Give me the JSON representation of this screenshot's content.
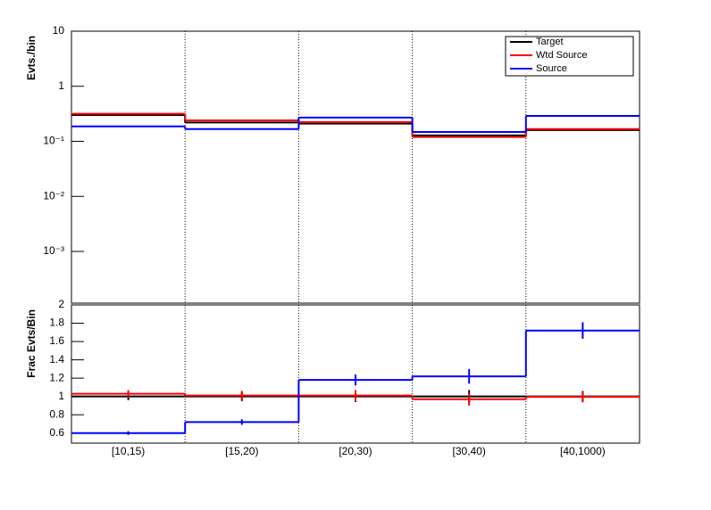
{
  "chart_data": [
    {
      "type": "step",
      "ylabel": "Evts./bin",
      "log_y": true,
      "categories": [
        "[10,15)",
        "[15,20)",
        "[20,30)",
        "[30,40)",
        "[40,1000)"
      ],
      "ylim": [
        0.000115,
        10
      ],
      "yticks": [
        {
          "value": 0.001,
          "label": "10⁻³"
        },
        {
          "value": 0.01,
          "label": "10⁻²"
        },
        {
          "value": 0.1,
          "label": "10⁻¹"
        },
        1,
        10
      ],
      "legend": "top-right",
      "series": [
        {
          "name": "Target",
          "color": "#000000",
          "values": [
            0.3,
            0.22,
            0.21,
            0.128,
            0.16
          ]
        },
        {
          "name": "Wtd Source",
          "color": "#ff0000",
          "values": [
            0.316,
            0.24,
            0.224,
            0.12,
            0.167
          ]
        },
        {
          "name": "Source",
          "color": "#0000ff",
          "values": [
            0.187,
            0.167,
            0.27,
            0.148,
            0.29
          ]
        }
      ]
    },
    {
      "type": "step",
      "ylabel": "Frac Evts/Bin",
      "categories": [
        "[10,15)",
        "[15,20)",
        "[20,30)",
        "[30,40)",
        "[40,1000)"
      ],
      "ylim": [
        0.49,
        2
      ],
      "yticks": [
        0.6,
        0.8,
        1,
        1.2,
        1.4,
        1.6,
        1.8,
        2
      ],
      "series": [
        {
          "name": "Target",
          "color": "#000000",
          "values": [
            1,
            1,
            1,
            1,
            1
          ],
          "errors": [
            0.04,
            0.05,
            0.06,
            0.07,
            0.06
          ]
        },
        {
          "name": "Wtd Source",
          "color": "#ff0000",
          "values": [
            1.03,
            1.01,
            1.01,
            0.97,
            0.995
          ],
          "errors": [
            0.04,
            0.05,
            0.06,
            0.07,
            0.06
          ]
        },
        {
          "name": "Source",
          "color": "#0000ff",
          "values": [
            0.6,
            0.72,
            1.18,
            1.22,
            1.72
          ],
          "errors": [
            0.02,
            0.03,
            0.06,
            0.08,
            0.09
          ]
        }
      ]
    }
  ]
}
